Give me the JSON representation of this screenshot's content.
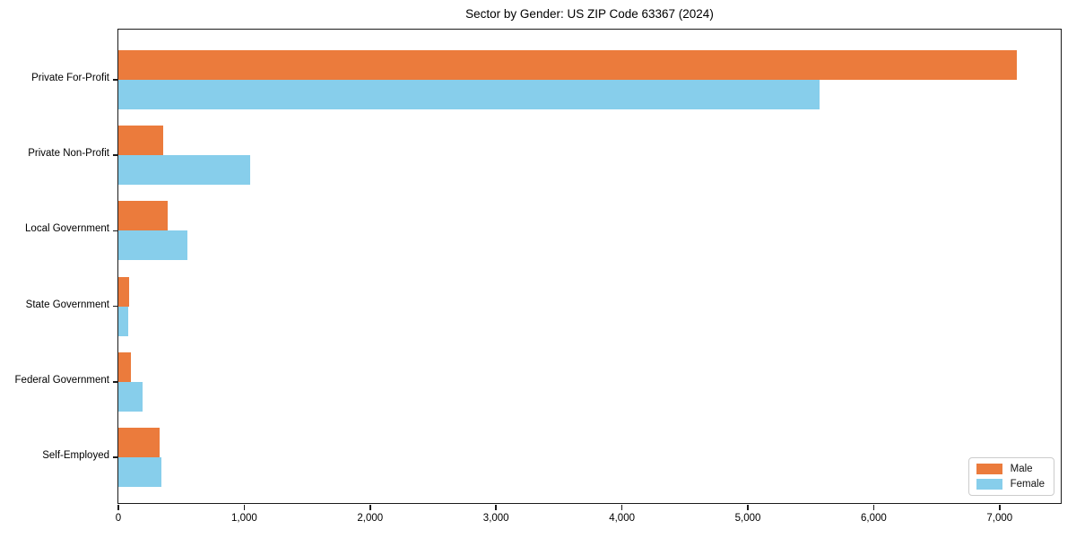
{
  "title": "Sector by Gender: US ZIP Code 63367 (2024)",
  "chart_data": {
    "type": "bar",
    "orientation": "horizontal",
    "title": "Sector by Gender: US ZIP Code 63367 (2024)",
    "categories": [
      "Private For-Profit",
      "Private Non-Profit",
      "Local Government",
      "State Government",
      "Federal Government",
      "Self-Employed"
    ],
    "series": [
      {
        "name": "Male",
        "color": "#eb7b3c",
        "values": [
          7140,
          355,
          390,
          85,
          100,
          330
        ]
      },
      {
        "name": "Female",
        "color": "#87ceeb",
        "values": [
          5570,
          1050,
          545,
          80,
          190,
          340
        ]
      }
    ],
    "xlabel": "",
    "ylabel": "",
    "xlim": [
      0,
      7500
    ],
    "xticks": [
      0,
      1000,
      2000,
      3000,
      4000,
      5000,
      6000,
      7000
    ],
    "xtick_labels": [
      "0",
      "1,000",
      "2,000",
      "3,000",
      "4,000",
      "5,000",
      "6,000",
      "7,000"
    ],
    "legend_position": "lower right",
    "grid": false,
    "background": "#ffffff"
  },
  "legend": {
    "male_label": "Male",
    "female_label": "Female"
  }
}
